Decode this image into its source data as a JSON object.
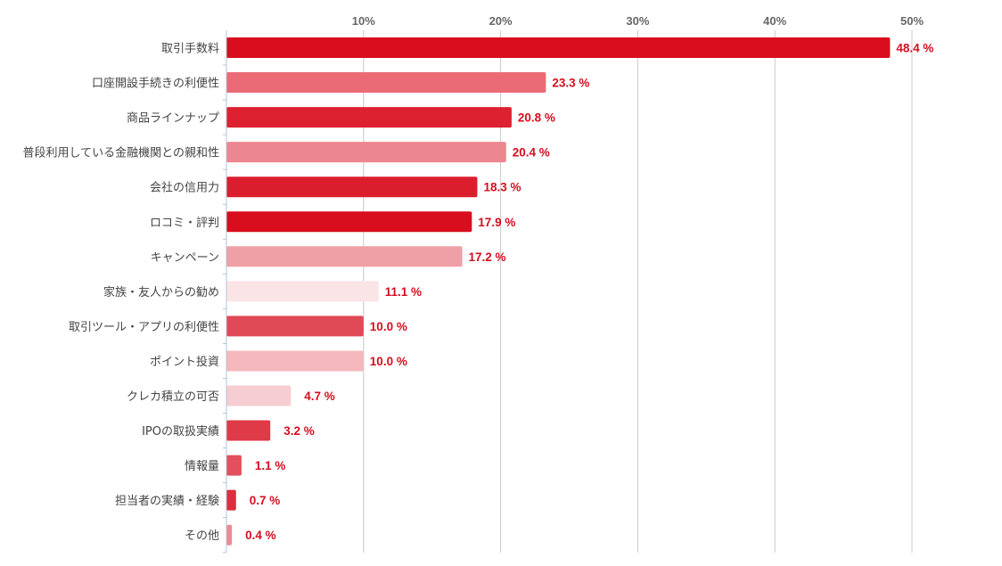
{
  "chart_data": {
    "type": "bar",
    "orientation": "horizontal",
    "title": "",
    "xlabel": "",
    "ylabel": "",
    "xlim": [
      0,
      56
    ],
    "x_ticks": [
      10,
      20,
      30,
      40,
      50
    ],
    "x_tick_labels": [
      "10%",
      "20%",
      "30%",
      "40%",
      "50%"
    ],
    "grid": "vertical",
    "legend": "none",
    "value_suffix": " %",
    "categories": [
      "取引手数料",
      "口座開設手続きの利便性",
      "商品ラインナップ",
      "普段利用している金融機関との親和性",
      "会社の信用力",
      "ロコミ・評判",
      "キャンペーン",
      "家族・友人からの勧め",
      "取引ツール・アプリの利便性",
      "ポイント投資",
      "クレカ積立の可否",
      "IPOの取扱実績",
      "情報量",
      "担当者の実績・経験",
      "その他"
    ],
    "values": [
      48.4,
      23.3,
      20.8,
      20.4,
      18.3,
      17.9,
      17.2,
      11.1,
      10.0,
      10.0,
      4.7,
      3.2,
      1.1,
      0.7,
      0.4
    ],
    "value_labels": [
      "48.4 %",
      "23.3 %",
      "20.8 %",
      "20.4 %",
      "18.3 %",
      "17.9 %",
      "17.2 %",
      "11.1 %",
      "10.0 %",
      "10.0 %",
      "4.7 %",
      "3.2 %",
      "1.1 %",
      "0.7 %",
      "0.4 %"
    ],
    "colors": [
      "#d90d1e",
      "#ea6b76",
      "#dd2130",
      "#ec8690",
      "#db1e2d",
      "#d80d1d",
      "#efa0a6",
      "#fae4e6",
      "#e04a57",
      "#f4b8bd",
      "#f6cdd2",
      "#df3a48",
      "#e34f5c",
      "#dc2e3c",
      "#ee8a92"
    ],
    "label_color": "#d40f1f",
    "grid_color": "#c8c8c8",
    "axis_color": "#b5c4d8"
  }
}
